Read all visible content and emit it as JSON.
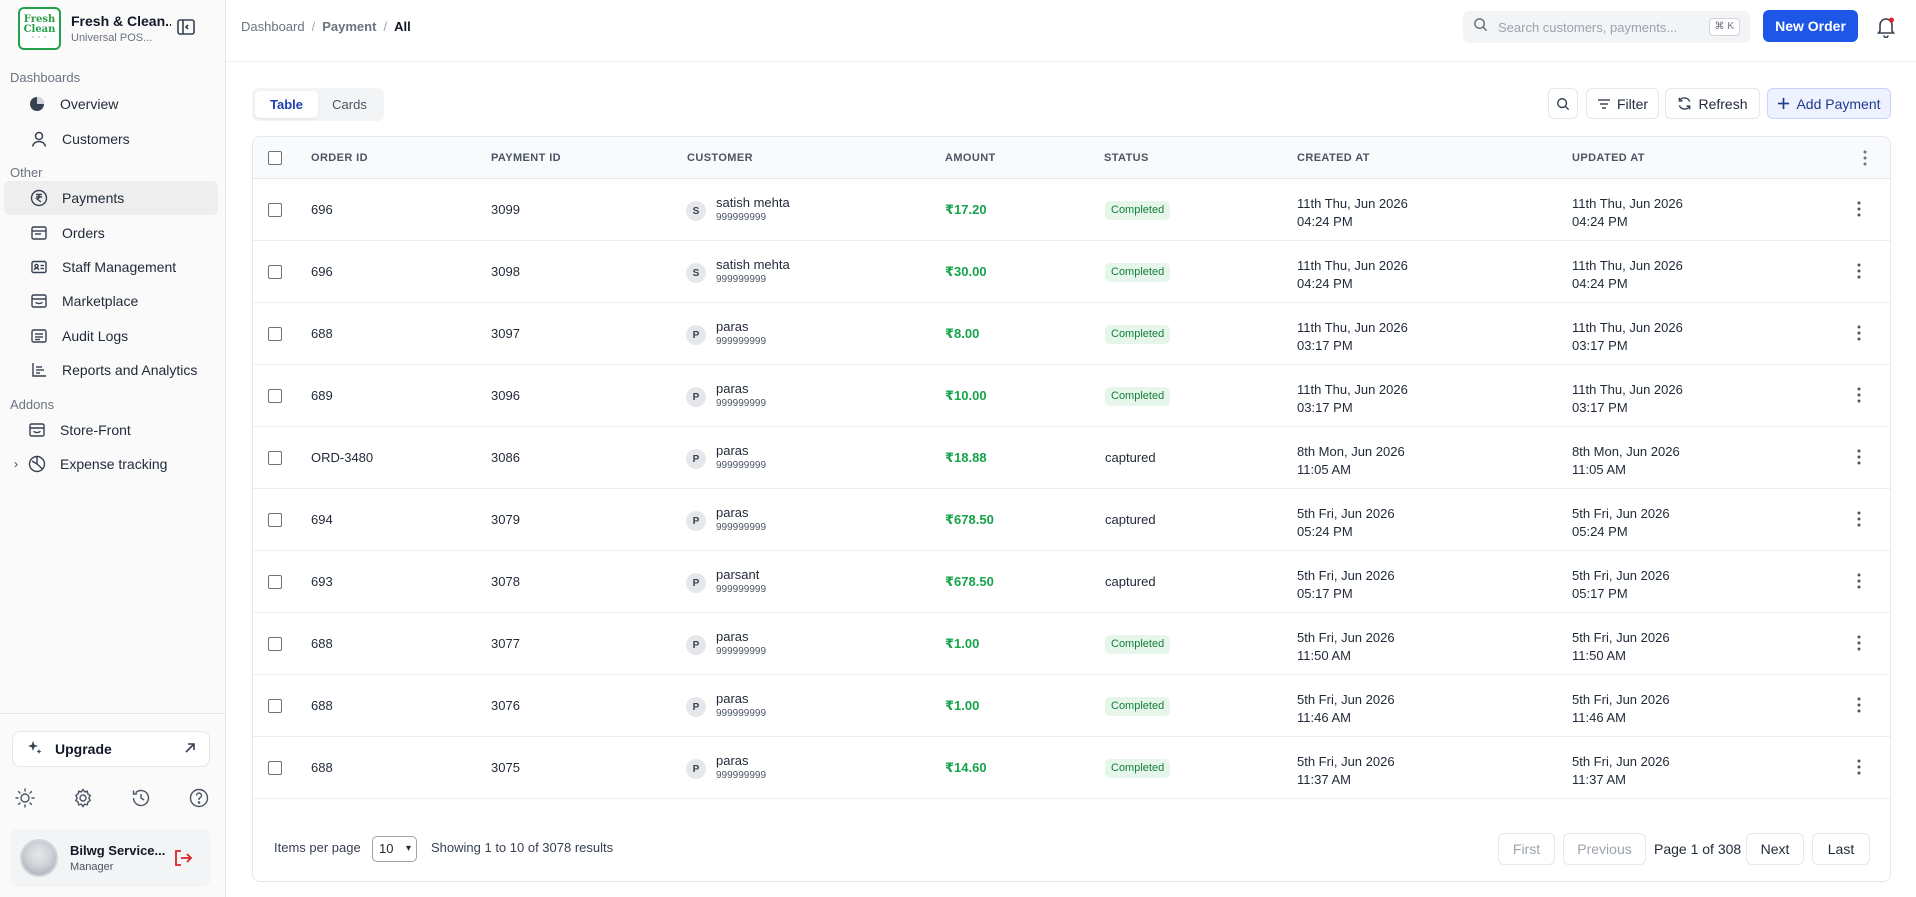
{
  "brand": {
    "logo_line1": "Fresh",
    "logo_line2": "Clean",
    "title": "Fresh & Clean...",
    "subtitle": "Universal POS..."
  },
  "sidebar": {
    "section_dashboards": "Dashboards",
    "dashboards": [
      {
        "label": "Overview",
        "icon": "pie-chart-icon"
      },
      {
        "label": "Customers",
        "icon": "user-icon"
      }
    ],
    "section_other": "Other",
    "other": [
      {
        "label": "Payments",
        "icon": "rupee-icon",
        "active": true
      },
      {
        "label": "Orders",
        "icon": "orders-icon"
      },
      {
        "label": "Staff Management",
        "icon": "id-card-icon"
      },
      {
        "label": "Marketplace",
        "icon": "store-icon"
      },
      {
        "label": "Audit Logs",
        "icon": "log-icon"
      },
      {
        "label": "Reports and Analytics",
        "icon": "chart-icon"
      }
    ],
    "section_addons": "Addons",
    "addons": [
      {
        "label": "Store-Front",
        "icon": "storefront-icon"
      },
      {
        "label": "Expense tracking",
        "icon": "expense-icon"
      }
    ],
    "upgrade_label": "Upgrade",
    "user": {
      "name": "Bilwg Service...",
      "role": "Manager"
    }
  },
  "header": {
    "breadcrumb": [
      "Dashboard",
      "Payment",
      "All"
    ],
    "search_placeholder": "Search customers, payments...",
    "search_shortcut": "⌘ K",
    "new_order_label": "New Order"
  },
  "toolbar": {
    "view_tabs": [
      "Table",
      "Cards"
    ],
    "filter_label": "Filter",
    "refresh_label": "Refresh",
    "add_payment_label": "Add Payment"
  },
  "table": {
    "columns": [
      "ORDER ID",
      "PAYMENT ID",
      "CUSTOMER",
      "AMOUNT",
      "STATUS",
      "CREATED AT",
      "UPDATED AT"
    ],
    "rows": [
      {
        "order_id": "696",
        "payment_id": "3099",
        "initial": "S",
        "customer": "satish mehta",
        "phone": "999999999",
        "amount": "₹17.20",
        "status": "Completed",
        "badge": true,
        "created_date": "11th Thu, Jun 2026",
        "created_time": "04:24 PM",
        "updated_date": "11th Thu, Jun 2026",
        "updated_time": "04:24 PM"
      },
      {
        "order_id": "696",
        "payment_id": "3098",
        "initial": "S",
        "customer": "satish mehta",
        "phone": "999999999",
        "amount": "₹30.00",
        "status": "Completed",
        "badge": true,
        "created_date": "11th Thu, Jun 2026",
        "created_time": "04:24 PM",
        "updated_date": "11th Thu, Jun 2026",
        "updated_time": "04:24 PM"
      },
      {
        "order_id": "688",
        "payment_id": "3097",
        "initial": "P",
        "customer": "paras",
        "phone": "999999999",
        "amount": "₹8.00",
        "status": "Completed",
        "badge": true,
        "created_date": "11th Thu, Jun 2026",
        "created_time": "03:17 PM",
        "updated_date": "11th Thu, Jun 2026",
        "updated_time": "03:17 PM"
      },
      {
        "order_id": "689",
        "payment_id": "3096",
        "initial": "P",
        "customer": "paras",
        "phone": "999999999",
        "amount": "₹10.00",
        "status": "Completed",
        "badge": true,
        "created_date": "11th Thu, Jun 2026",
        "created_time": "03:17 PM",
        "updated_date": "11th Thu, Jun 2026",
        "updated_time": "03:17 PM"
      },
      {
        "order_id": "ORD-3480",
        "payment_id": "3086",
        "initial": "P",
        "customer": "paras",
        "phone": "999999999",
        "amount": "₹18.88",
        "status": "captured",
        "badge": false,
        "created_date": "8th Mon, Jun 2026",
        "created_time": "11:05 AM",
        "updated_date": "8th Mon, Jun 2026",
        "updated_time": "11:05 AM"
      },
      {
        "order_id": "694",
        "payment_id": "3079",
        "initial": "P",
        "customer": "paras",
        "phone": "999999999",
        "amount": "₹678.50",
        "status": "captured",
        "badge": false,
        "created_date": "5th Fri, Jun 2026",
        "created_time": "05:24 PM",
        "updated_date": "5th Fri, Jun 2026",
        "updated_time": "05:24 PM"
      },
      {
        "order_id": "693",
        "payment_id": "3078",
        "initial": "P",
        "customer": "parsant",
        "phone": "999999999",
        "amount": "₹678.50",
        "status": "captured",
        "badge": false,
        "created_date": "5th Fri, Jun 2026",
        "created_time": "05:17 PM",
        "updated_date": "5th Fri, Jun 2026",
        "updated_time": "05:17 PM"
      },
      {
        "order_id": "688",
        "payment_id": "3077",
        "initial": "P",
        "customer": "paras",
        "phone": "999999999",
        "amount": "₹1.00",
        "status": "Completed",
        "badge": true,
        "created_date": "5th Fri, Jun 2026",
        "created_time": "11:50 AM",
        "updated_date": "5th Fri, Jun 2026",
        "updated_time": "11:50 AM"
      },
      {
        "order_id": "688",
        "payment_id": "3076",
        "initial": "P",
        "customer": "paras",
        "phone": "999999999",
        "amount": "₹1.00",
        "status": "Completed",
        "badge": true,
        "created_date": "5th Fri, Jun 2026",
        "created_time": "11:46 AM",
        "updated_date": "5th Fri, Jun 2026",
        "updated_time": "11:46 AM"
      },
      {
        "order_id": "688",
        "payment_id": "3075",
        "initial": "P",
        "customer": "paras",
        "phone": "999999999",
        "amount": "₹14.60",
        "status": "Completed",
        "badge": true,
        "created_date": "5th Fri, Jun 2026",
        "created_time": "11:37 AM",
        "updated_date": "5th Fri, Jun 2026",
        "updated_time": "11:37 AM"
      }
    ]
  },
  "pagination": {
    "items_per_page_label": "Items per page",
    "items_per_page_value": "10",
    "showing_text": "Showing 1 to 10 of 3078 results",
    "first_label": "First",
    "previous_label": "Previous",
    "page_text": "Page 1 of 308",
    "next_label": "Next",
    "last_label": "Last"
  },
  "colors": {
    "accent": "#1e56e8",
    "amount_green": "#16a34a",
    "badge_bg": "#e6f6ea",
    "logout_red": "#dc2626"
  }
}
